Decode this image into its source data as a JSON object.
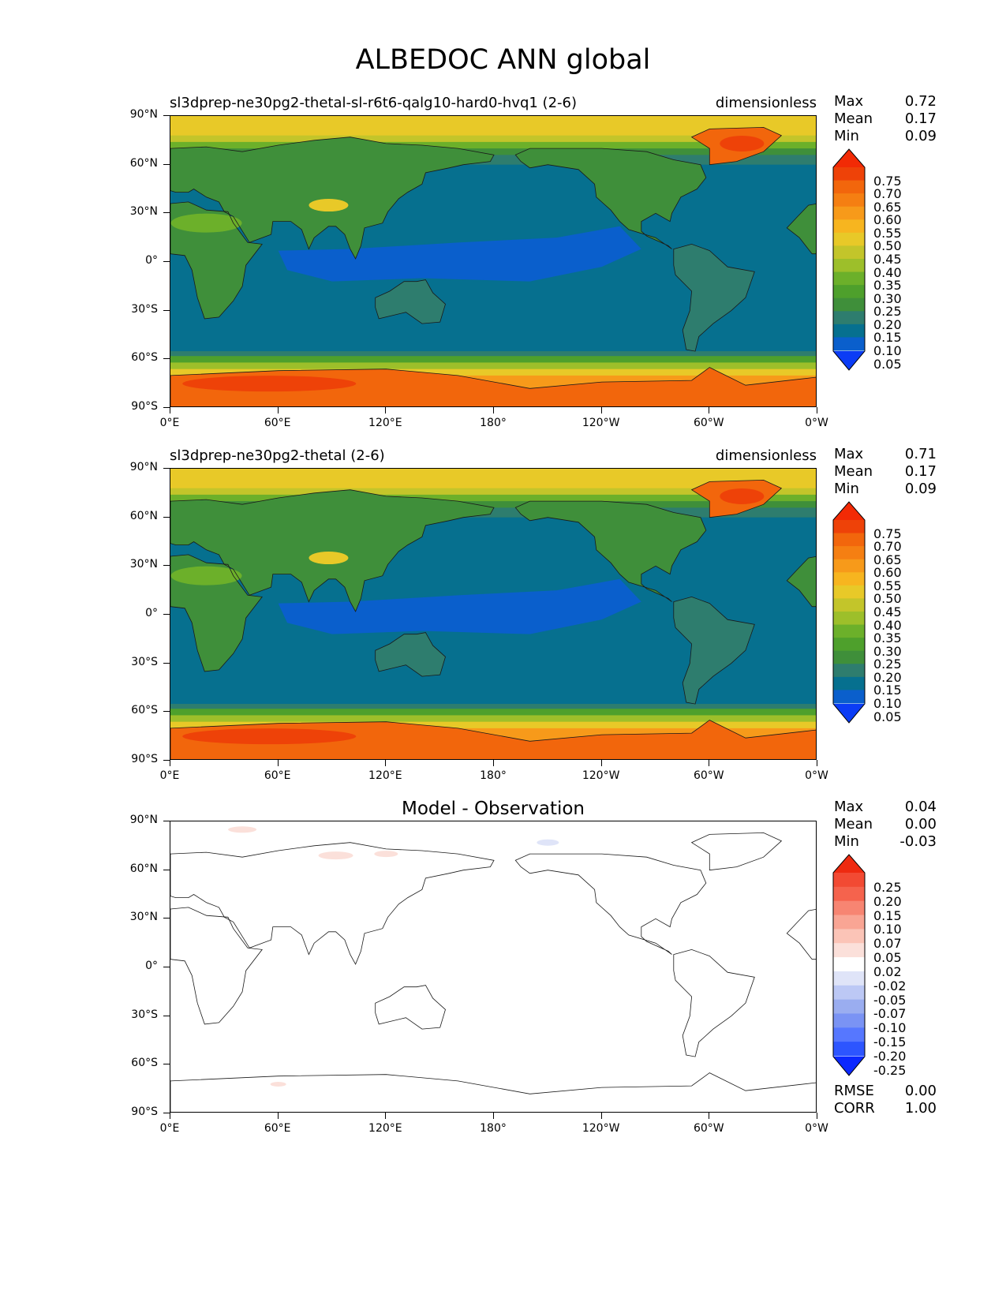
{
  "title": "ALBEDOC ANN global",
  "lat_ticks": [
    "90°N",
    "60°N",
    "30°N",
    "0°",
    "30°S",
    "60°S",
    "90°S"
  ],
  "lon_ticks": [
    "0°E",
    "60°E",
    "120°E",
    "180°",
    "120°W",
    "60°W",
    "0°W"
  ],
  "panels": [
    {
      "title_left": "sl3dprep-ne30pg2-thetal-sl-r6t6-qalg10-hard0-hvq1 (2-6)",
      "title_right": "dimensionless",
      "stats": {
        "max_label": "Max",
        "max": "0.72",
        "mean_label": "Mean",
        "mean": "0.17",
        "min_label": "Min",
        "min": "0.09"
      },
      "colorbar": [
        "0.75",
        "0.70",
        "0.65",
        "0.60",
        "0.55",
        "0.50",
        "0.45",
        "0.40",
        "0.35",
        "0.30",
        "0.25",
        "0.20",
        "0.15",
        "0.10",
        "0.05"
      ]
    },
    {
      "title_left": "sl3dprep-ne30pg2-thetal (2-6)",
      "title_right": "dimensionless",
      "stats": {
        "max_label": "Max",
        "max": "0.71",
        "mean_label": "Mean",
        "mean": "0.17",
        "min_label": "Min",
        "min": "0.09"
      },
      "colorbar": [
        "0.75",
        "0.70",
        "0.65",
        "0.60",
        "0.55",
        "0.50",
        "0.45",
        "0.40",
        "0.35",
        "0.30",
        "0.25",
        "0.20",
        "0.15",
        "0.10",
        "0.05"
      ]
    },
    {
      "title_center": "Model - Observation",
      "stats": {
        "max_label": "Max",
        "max": "0.04",
        "mean_label": "Mean",
        "mean": "0.00",
        "min_label": "Min",
        "min": "-0.03"
      },
      "colorbar": [
        "0.25",
        "0.20",
        "0.15",
        "0.10",
        "0.07",
        "0.05",
        "0.02",
        "-0.02",
        "-0.05",
        "-0.07",
        "-0.10",
        "-0.15",
        "-0.20",
        "-0.25"
      ],
      "rmse_label": "RMSE",
      "rmse": "0.00",
      "corr_label": "CORR",
      "corr": "1.00"
    }
  ],
  "colors": {
    "abs_scale": [
      "#0b3cf5",
      "#0a5fcc",
      "#06708f",
      "#2e7d6e",
      "#3f8f3a",
      "#4ea02c",
      "#6cb02a",
      "#9dbf2a",
      "#c3c52a",
      "#e8c928",
      "#f7b51f",
      "#f79a1a",
      "#f57f12",
      "#f2660c",
      "#ee4208",
      "#f22a05"
    ],
    "diff_scale": [
      "#0b28ff",
      "#2d55ff",
      "#5677ff",
      "#7a93f4",
      "#9aadf0",
      "#bcc8f5",
      "#dfe4f8",
      "#ffffff",
      "#fbe0da",
      "#fbc4b7",
      "#f9a594",
      "#f78572",
      "#f5634d",
      "#f24a33",
      "#ee2a10"
    ]
  }
}
